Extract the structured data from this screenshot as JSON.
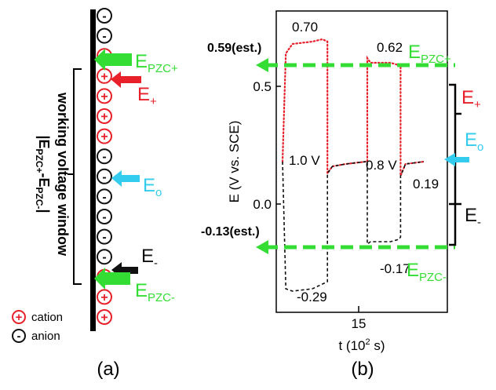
{
  "panel_a": {
    "caption": "(a)",
    "bracket_label_line1": "working voltage window",
    "bracket_label_line2": "|E",
    "bracket_sub1": "PZC+",
    "bracket_mid": "-E",
    "bracket_sub2": "PZC-",
    "bracket_end": "|",
    "labels": {
      "e_pzc_plus": {
        "main": "E",
        "sub": "PZC+",
        "color": "#33dd33"
      },
      "e_plus": {
        "main": "E",
        "sub": "+",
        "color": "#e8202a"
      },
      "e_zero": {
        "main": "E",
        "sub": "o",
        "color": "#33ccee"
      },
      "e_minus": {
        "main": "E",
        "sub": "-",
        "color": "#111111"
      },
      "e_pzc_minus": {
        "main": "E",
        "sub": "PZC-",
        "color": "#33dd33"
      }
    },
    "ion_column": [
      "anion",
      "anion",
      "cation",
      "cation",
      "cation",
      "cation",
      "cation",
      "anion",
      "anion",
      "anion",
      "anion",
      "anion",
      "anion",
      "cation",
      "cation",
      "cation"
    ],
    "legend": [
      {
        "symbol": "+",
        "text": "cation",
        "color": "#e8202a"
      },
      {
        "symbol": "-",
        "text": "anion",
        "color": "#111111"
      }
    ]
  },
  "panel_b": {
    "caption": "(b)",
    "chart_data": {
      "type": "line",
      "xlabel_main": "t (10",
      "xlabel_sup": "2",
      "xlabel_end": " s)",
      "x_ticks": [
        "15"
      ],
      "ylabel": "E (V vs. SCE)",
      "y_ticks": [
        "0.0",
        "0.5"
      ],
      "ylim": [
        -0.42,
        0.87
      ],
      "series": [
        {
          "color": "#e8202a",
          "style": "dotted",
          "points": [
            [
              0.0,
              0.18
            ],
            [
              0.02,
              0.64
            ],
            [
              0.06,
              0.68
            ],
            [
              0.18,
              0.69
            ],
            [
              0.24,
              0.7
            ],
            [
              0.27,
              0.69
            ],
            [
              0.27,
              0.13
            ],
            [
              0.3,
              0.16
            ],
            [
              0.38,
              0.17
            ],
            [
              0.5,
              0.18
            ],
            [
              0.51,
              0.18
            ],
            [
              0.51,
              0.62
            ],
            [
              0.53,
              0.6
            ],
            [
              0.65,
              0.6
            ],
            [
              0.7,
              0.59
            ],
            [
              0.71,
              0.59
            ],
            [
              0.71,
              0.12
            ],
            [
              0.74,
              0.17
            ],
            [
              0.85,
              0.18
            ]
          ]
        },
        {
          "color": "#111111",
          "style": "dashed",
          "points": [
            [
              0.0,
              0.18
            ],
            [
              0.02,
              -0.36
            ],
            [
              0.06,
              -0.37
            ],
            [
              0.18,
              -0.36
            ],
            [
              0.24,
              -0.34
            ],
            [
              0.27,
              -0.33
            ],
            [
              0.27,
              0.13
            ],
            [
              0.3,
              0.16
            ],
            [
              0.38,
              0.17
            ],
            [
              0.5,
              0.18
            ],
            [
              0.51,
              0.18
            ],
            [
              0.51,
              -0.17
            ],
            [
              0.53,
              -0.16
            ],
            [
              0.65,
              -0.16
            ],
            [
              0.7,
              -0.15
            ],
            [
              0.71,
              -0.14
            ],
            [
              0.71,
              0.12
            ],
            [
              0.74,
              0.17
            ],
            [
              0.85,
              0.18
            ]
          ]
        }
      ],
      "annotations": [
        "0.70",
        "0.62",
        "1.0 V",
        "0.8 V",
        "0.19",
        "-0.29",
        "-0.17"
      ],
      "ref_lines": [
        {
          "value": 0.59,
          "label": "0.59(est.)",
          "name": "E_PZC+"
        },
        {
          "value": -0.13,
          "label": "-0.13(est.)",
          "name": "E_PZC-"
        }
      ]
    },
    "right_labels": {
      "e_pzc_plus": {
        "main": "E",
        "sub": "PZC+"
      },
      "e_plus": {
        "main": "E",
        "sub": "+"
      },
      "e_zero": {
        "main": "E",
        "sub": "o"
      },
      "e_minus": {
        "main": "E",
        "sub": "-"
      },
      "e_pzc_minus": {
        "main": "E",
        "sub": "PZC-"
      }
    }
  }
}
